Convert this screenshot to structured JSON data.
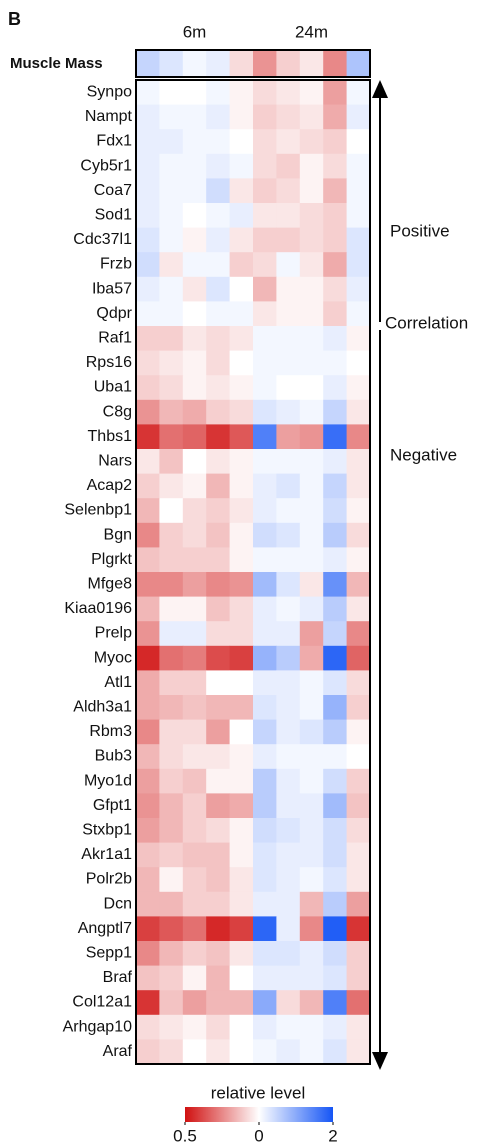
{
  "chart_data": {
    "type": "heatmap",
    "panel_label": "B",
    "column_groups": [
      "6m",
      "24m"
    ],
    "header_row": {
      "name": "Muscle Mass",
      "values": [
        0.25,
        0.15,
        0.05,
        0.1,
        -0.15,
        -0.45,
        -0.2,
        -0.1,
        -0.5,
        0.35
      ]
    },
    "rows": [
      "Synpo",
      "Nampt",
      "Fdx1",
      "Cyb5r1",
      "Coa7",
      "Sod1",
      "Cdc37l1",
      "Frzb",
      "Iba57",
      "Qdpr",
      "Raf1",
      "Rps16",
      "Uba1",
      "C8g",
      "Thbs1",
      "Nars",
      "Acap2",
      "Selenbp1",
      "Bgn",
      "Plgrkt",
      "Mfge8",
      "Kiaa0196",
      "Prelp",
      "Myoc",
      "Atl1",
      "Aldh3a1",
      "Rbm3",
      "Bub3",
      "Myo1d",
      "Gfpt1",
      "Stxbp1",
      "Akr1a1",
      "Polr2b",
      "Dcn",
      "Angptl7",
      "Sepp1",
      "Braf",
      "Col12a1",
      "Arhgap10",
      "Araf"
    ],
    "values": [
      [
        0.05,
        0,
        0,
        0.05,
        -0.05,
        -0.15,
        -0.1,
        -0.05,
        -0.4,
        0.05
      ],
      [
        0.1,
        0.05,
        0.05,
        0.1,
        -0.05,
        -0.2,
        -0.15,
        -0.1,
        -0.35,
        0.1
      ],
      [
        0.1,
        0.1,
        0.05,
        0.05,
        0,
        -0.15,
        -0.1,
        -0.15,
        -0.2,
        0
      ],
      [
        0.1,
        0.05,
        0.05,
        0.1,
        0.05,
        -0.15,
        -0.2,
        -0.05,
        -0.15,
        0.05
      ],
      [
        0.1,
        0.05,
        0.05,
        0.2,
        -0.1,
        -0.2,
        -0.15,
        -0.05,
        -0.3,
        0.05
      ],
      [
        0.1,
        0.05,
        0,
        0.05,
        0.1,
        -0.1,
        -0.1,
        -0.15,
        -0.2,
        0.05
      ],
      [
        0.15,
        0.05,
        -0.05,
        0.1,
        -0.1,
        -0.2,
        -0.2,
        -0.15,
        -0.2,
        0.15
      ],
      [
        0.2,
        -0.1,
        0.05,
        0.05,
        -0.2,
        -0.15,
        0.05,
        -0.1,
        -0.35,
        0.15
      ],
      [
        0.1,
        0.05,
        -0.1,
        0.15,
        0,
        -0.3,
        -0.05,
        -0.05,
        -0.15,
        0.1
      ],
      [
        0.05,
        0.05,
        0,
        0.05,
        0.05,
        -0.1,
        -0.05,
        -0.05,
        -0.2,
        0.05
      ],
      [
        -0.2,
        -0.2,
        -0.1,
        -0.15,
        -0.1,
        0.05,
        0.05,
        0.05,
        0.1,
        -0.05
      ],
      [
        -0.15,
        -0.1,
        -0.05,
        -0.15,
        0,
        0.05,
        0.05,
        0.05,
        0.05,
        0
      ],
      [
        -0.2,
        -0.15,
        -0.05,
        -0.1,
        -0.05,
        0.05,
        0,
        0,
        0.1,
        -0.05
      ],
      [
        -0.45,
        -0.3,
        -0.35,
        -0.2,
        -0.15,
        0.15,
        0.1,
        0.05,
        0.25,
        -0.1
      ],
      [
        -0.85,
        -0.6,
        -0.65,
        -0.85,
        -0.7,
        0.75,
        -0.4,
        -0.45,
        0.85,
        -0.5
      ],
      [
        -0.1,
        -0.25,
        0,
        -0.1,
        -0.05,
        0.05,
        0.05,
        0.05,
        0.1,
        -0.1
      ],
      [
        -0.2,
        -0.1,
        -0.05,
        -0.3,
        -0.05,
        0.1,
        0.15,
        0.05,
        0.25,
        -0.1
      ],
      [
        -0.3,
        0,
        -0.15,
        -0.2,
        -0.1,
        0.1,
        0.05,
        0.05,
        0.2,
        -0.05
      ],
      [
        -0.5,
        -0.2,
        -0.15,
        -0.25,
        -0.05,
        0.2,
        0.15,
        0.05,
        0.3,
        -0.15
      ],
      [
        -0.25,
        -0.2,
        -0.2,
        -0.2,
        -0.05,
        0.05,
        0.05,
        0.05,
        0.1,
        -0.05
      ],
      [
        -0.5,
        -0.5,
        -0.4,
        -0.5,
        -0.45,
        0.4,
        0.15,
        -0.1,
        0.65,
        -0.3
      ],
      [
        -0.3,
        -0.05,
        -0.05,
        -0.25,
        -0.15,
        0.1,
        0.05,
        0.1,
        0.3,
        -0.1
      ],
      [
        -0.45,
        0.1,
        0.1,
        -0.15,
        -0.15,
        0.1,
        0.1,
        -0.4,
        0.25,
        -0.5
      ],
      [
        -0.9,
        -0.6,
        -0.55,
        -0.75,
        -0.8,
        0.45,
        0.3,
        -0.35,
        0.9,
        -0.65
      ],
      [
        -0.35,
        -0.2,
        -0.2,
        0,
        0,
        0.1,
        0.1,
        0.05,
        0.15,
        -0.15
      ],
      [
        -0.35,
        -0.3,
        -0.25,
        -0.3,
        -0.3,
        0.15,
        0.1,
        0.05,
        0.45,
        -0.2
      ],
      [
        -0.5,
        -0.15,
        -0.15,
        -0.4,
        0,
        0.25,
        0.1,
        0.15,
        0.3,
        -0.05
      ],
      [
        -0.3,
        -0.15,
        -0.1,
        -0.1,
        -0.05,
        0.1,
        0.05,
        0.05,
        0.05,
        0
      ],
      [
        -0.4,
        -0.2,
        -0.25,
        -0.05,
        -0.05,
        0.3,
        0.1,
        0.05,
        0.2,
        -0.2
      ],
      [
        -0.45,
        -0.3,
        -0.2,
        -0.4,
        -0.35,
        0.3,
        0.1,
        0.1,
        0.4,
        -0.25
      ],
      [
        -0.4,
        -0.3,
        -0.2,
        -0.15,
        -0.05,
        0.2,
        0.15,
        0.1,
        0.2,
        -0.15
      ],
      [
        -0.25,
        -0.2,
        -0.25,
        -0.25,
        -0.05,
        0.15,
        0.1,
        0.1,
        0.2,
        -0.1
      ],
      [
        -0.3,
        -0.05,
        -0.2,
        -0.25,
        -0.1,
        0.15,
        0.1,
        0.05,
        0.15,
        -0.1
      ],
      [
        -0.3,
        -0.3,
        -0.2,
        -0.2,
        -0.1,
        0.1,
        0.1,
        -0.3,
        0.3,
        -0.4
      ],
      [
        -0.8,
        -0.7,
        -0.6,
        -0.9,
        -0.8,
        0.9,
        0.1,
        -0.5,
        0.95,
        -0.85
      ],
      [
        -0.5,
        -0.3,
        -0.2,
        -0.25,
        -0.1,
        0.15,
        0.15,
        0.1,
        0.2,
        -0.2
      ],
      [
        -0.25,
        -0.2,
        -0.05,
        -0.3,
        0,
        0.1,
        0.1,
        0.1,
        0.15,
        -0.2
      ],
      [
        -0.85,
        -0.25,
        -0.4,
        -0.3,
        -0.3,
        0.5,
        -0.15,
        -0.3,
        0.75,
        -0.6
      ],
      [
        -0.15,
        -0.1,
        -0.05,
        -0.15,
        0,
        0.1,
        0.05,
        0.05,
        0.1,
        -0.1
      ],
      [
        -0.2,
        -0.15,
        0,
        -0.1,
        0,
        0.05,
        0.1,
        0.05,
        0.15,
        -0.1
      ]
    ],
    "annotations": [
      "Positive",
      "Correlation",
      "Negative"
    ],
    "colorbar": {
      "title": "relative level",
      "clim": [
        -1,
        1
      ],
      "ticks": [
        {
          "value": -1,
          "label": "0.5"
        },
        0,
        {
          "value": 1,
          "label": "2"
        }
      ],
      "color_low": "#d01010",
      "color_mid": "#ffffff",
      "color_high": "#1555f5"
    }
  }
}
